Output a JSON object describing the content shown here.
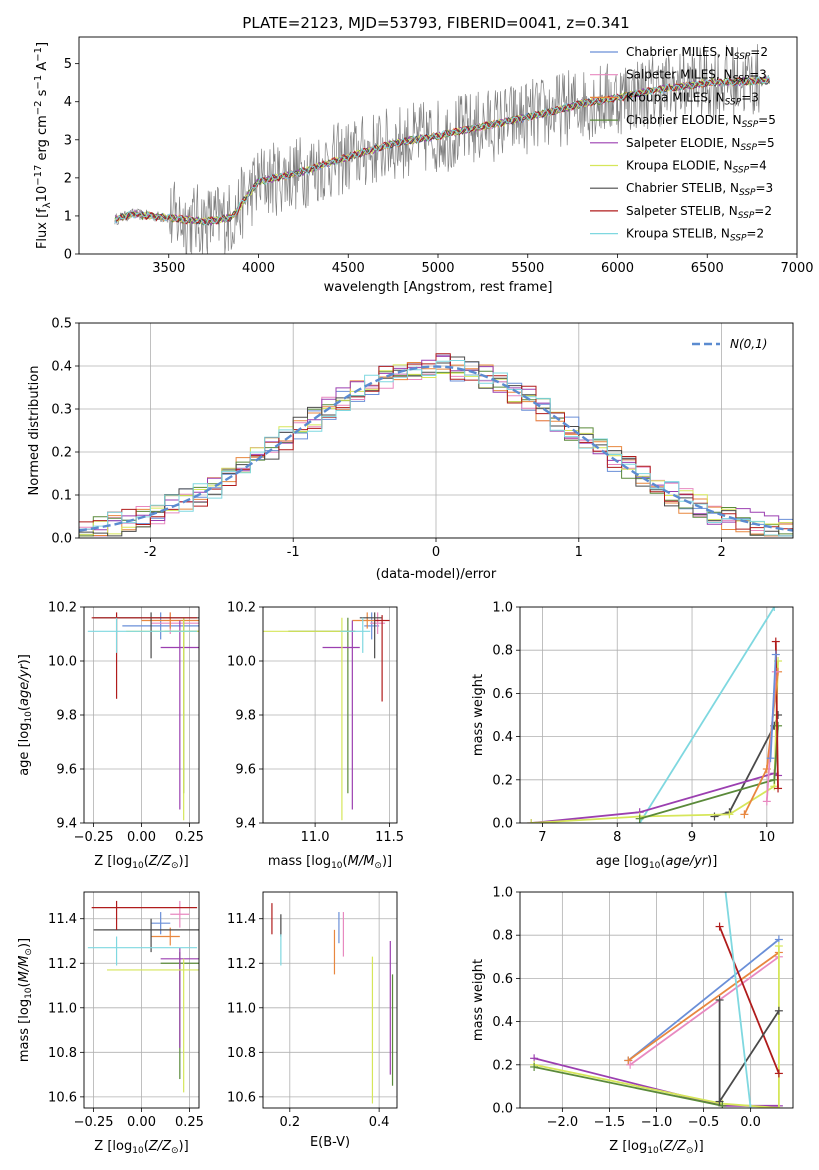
{
  "figure": {
    "title": "PLATE=2123, MJD=53793, FIBERID=0041, z=0.341"
  },
  "colors": {
    "Chabrier MILES": "#6a8fd8",
    "Salpeter MILES": "#e889c0",
    "Kroupa MILES": "#e8873f",
    "Chabrier ELODIE": "#5a8a3a",
    "Salpeter ELODIE": "#9b3fb0",
    "Kroupa ELODIE": "#d6e65a",
    "Chabrier STELIB": "#4a4a4a",
    "Salpeter STELIB": "#b01c1c",
    "Kroupa STELIB": "#7fd8e0",
    "data": "#808080",
    "normal": "#5b8bd0"
  },
  "chart_data": [
    {
      "id": "spectrum",
      "type": "line",
      "xlabel": "wavelength [Angstrom, rest frame]",
      "ylabel": "Flux [f_λ 10^-17 erg cm^-2 s^-1 A^-1]",
      "xlim": [
        3000,
        7000
      ],
      "ylim": [
        0,
        5.7
      ],
      "xticks": [
        3500,
        4000,
        4500,
        5000,
        5500,
        6000,
        6500,
        7000
      ],
      "yticks": [
        0,
        1,
        2,
        3,
        4,
        5
      ],
      "grid": false,
      "legend_position": "top-right",
      "data_range": [
        3200,
        6850
      ],
      "data_noise_start": 3500,
      "data_noise_end": 6800,
      "model_anchors": [
        [
          3200,
          0.9
        ],
        [
          3300,
          1.05
        ],
        [
          3500,
          0.95
        ],
        [
          3700,
          0.85
        ],
        [
          3850,
          0.95
        ],
        [
          3950,
          1.6
        ],
        [
          4000,
          1.9
        ],
        [
          4200,
          2.1
        ],
        [
          4400,
          2.4
        ],
        [
          4600,
          2.7
        ],
        [
          4800,
          2.95
        ],
        [
          5000,
          3.1
        ],
        [
          5200,
          3.3
        ],
        [
          5400,
          3.5
        ],
        [
          5600,
          3.7
        ],
        [
          5800,
          3.95
        ],
        [
          6000,
          4.1
        ],
        [
          6200,
          4.3
        ],
        [
          6500,
          4.5
        ],
        [
          6800,
          4.55
        ]
      ],
      "legend": [
        {
          "label": "Chabrier MILES, N",
          "sub": "SSP",
          "value": "=2"
        },
        {
          "label": "Salpeter MILES, N",
          "sub": "SSP",
          "value": "=3"
        },
        {
          "label": "Kroupa MILES, N",
          "sub": "SSP",
          "value": "=3"
        },
        {
          "label": "Chabrier ELODIE, N",
          "sub": "SSP",
          "value": "=5"
        },
        {
          "label": "Salpeter ELODIE, N",
          "sub": "SSP",
          "value": "=5"
        },
        {
          "label": "Kroupa ELODIE, N",
          "sub": "SSP",
          "value": "=4"
        },
        {
          "label": "Chabrier STELIB, N",
          "sub": "SSP",
          "value": "=3"
        },
        {
          "label": "Salpeter STELIB, N",
          "sub": "SSP",
          "value": "=2"
        },
        {
          "label": "Kroupa STELIB, N",
          "sub": "SSP",
          "value": "=2"
        }
      ]
    },
    {
      "id": "residuals",
      "type": "bar",
      "xlabel": "(data-model)/error",
      "ylabel": "Normed distribution",
      "xlim": [
        -2.5,
        2.5
      ],
      "ylim": [
        0,
        0.5
      ],
      "xticks": [
        -2,
        -1,
        0,
        1,
        2
      ],
      "yticks": [
        0.0,
        0.1,
        0.2,
        0.3,
        0.4,
        0.5
      ],
      "grid": true,
      "legend_position": "top-right",
      "legend_label": "N(0,1)",
      "bin_width": 0.1
    },
    {
      "id": "age_vs_Z",
      "type": "scatter",
      "xlabel": "Z [log10(Z/Z⊙)]",
      "ylabel": "age [log10(age/yr)]",
      "xlim": [
        -0.3,
        0.3
      ],
      "ylim": [
        9.4,
        10.2
      ],
      "xticks": [
        -0.25,
        0.0,
        0.25
      ],
      "xticklabels": [
        "−0.25",
        "0.00",
        "0.25"
      ],
      "yticks": [
        9.4,
        9.6,
        9.8,
        10.0,
        10.2
      ],
      "grid": true,
      "errorbars": [
        {
          "series": "Chabrier MILES",
          "x": 0.1,
          "y": 10.13,
          "xerr": [
            0.2,
            0.2
          ],
          "yerr": [
            0.05,
            0.05
          ]
        },
        {
          "series": "Salpeter MILES",
          "x": 0.15,
          "y": 10.14,
          "xerr": [
            0.1,
            0.15
          ],
          "yerr": [
            0.04,
            0.04
          ]
        },
        {
          "series": "Kroupa MILES",
          "x": 0.15,
          "y": 10.15,
          "xerr": [
            0.15,
            0.15
          ],
          "yerr": [
            0.03,
            0.03
          ]
        },
        {
          "series": "Chabrier ELODIE",
          "x": 0.22,
          "y": 10.11,
          "xerr": [
            0.1,
            0.08
          ],
          "yerr": [
            0.6,
            0.05
          ]
        },
        {
          "series": "Salpeter ELODIE",
          "x": 0.2,
          "y": 10.05,
          "xerr": [
            0.1,
            0.1
          ],
          "yerr": [
            0.6,
            0.1
          ]
        },
        {
          "series": "Kroupa ELODIE",
          "x": 0.22,
          "y": 10.11,
          "xerr": [
            0.3,
            0.08
          ],
          "yerr": [
            0.7,
            0.05
          ]
        },
        {
          "series": "Chabrier STELIB",
          "x": 0.05,
          "y": 10.16,
          "xerr": [
            0.3,
            0.25
          ],
          "yerr": [
            0.15,
            0.02
          ]
        },
        {
          "series": "Salpeter STELIB",
          "x": -0.13,
          "y": 10.16,
          "xerr": [
            0.13,
            0.42
          ],
          "yerr": [
            0.3,
            0.02
          ]
        },
        {
          "series": "Kroupa STELIB",
          "x": -0.13,
          "y": 10.11,
          "xerr": [
            0.15,
            0.42
          ],
          "yerr": [
            0.08,
            0.05
          ]
        }
      ]
    },
    {
      "id": "age_vs_mass",
      "type": "scatter",
      "xlabel": "mass [log10(M/M⊙)]",
      "ylabel": "",
      "xlim": [
        10.65,
        11.55
      ],
      "ylim": [
        9.4,
        10.2
      ],
      "xticks": [
        11.0,
        11.5
      ],
      "xticklabels": [
        "11.0",
        "11.5"
      ],
      "yticks": [
        9.4,
        9.6,
        9.8,
        10.0,
        10.2
      ],
      "grid": true,
      "errorbars": [
        {
          "series": "Chabrier MILES",
          "x": 11.38,
          "y": 10.13,
          "xerr": [
            0.05,
            0.05
          ],
          "yerr": [
            0.05,
            0.05
          ]
        },
        {
          "series": "Salpeter MILES",
          "x": 11.42,
          "y": 10.14,
          "xerr": [
            0.05,
            0.05
          ],
          "yerr": [
            0.04,
            0.04
          ]
        },
        {
          "series": "Kroupa MILES",
          "x": 11.35,
          "y": 10.15,
          "xerr": [
            0.1,
            0.08
          ],
          "yerr": [
            0.03,
            0.03
          ]
        },
        {
          "series": "Chabrier ELODIE",
          "x": 11.22,
          "y": 10.11,
          "xerr": [
            0.4,
            0.05
          ],
          "yerr": [
            0.6,
            0.05
          ]
        },
        {
          "series": "Salpeter ELODIE",
          "x": 11.25,
          "y": 10.05,
          "xerr": [
            0.2,
            0.05
          ],
          "yerr": [
            0.6,
            0.1
          ]
        },
        {
          "series": "Kroupa ELODIE",
          "x": 11.18,
          "y": 10.11,
          "xerr": [
            0.6,
            0.05
          ],
          "yerr": [
            0.7,
            0.05
          ]
        },
        {
          "series": "Chabrier STELIB",
          "x": 11.4,
          "y": 10.16,
          "xerr": [
            0.1,
            0.05
          ],
          "yerr": [
            0.15,
            0.02
          ]
        },
        {
          "series": "Salpeter STELIB",
          "x": 11.45,
          "y": 10.15,
          "xerr": [
            0.05,
            0.05
          ],
          "yerr": [
            0.3,
            0.02
          ]
        },
        {
          "series": "Kroupa STELIB",
          "x": 11.32,
          "y": 10.11,
          "xerr": [
            0.15,
            0.05
          ],
          "yerr": [
            0.08,
            0.05
          ]
        }
      ]
    },
    {
      "id": "weight_vs_age",
      "type": "line",
      "xlabel": "age [log10(age/yr)]",
      "ylabel": "mass weight",
      "xlim": [
        6.7,
        10.35
      ],
      "ylim": [
        0,
        1.0
      ],
      "xticks": [
        7,
        8,
        9,
        10
      ],
      "yticks": [
        0.0,
        0.2,
        0.4,
        0.6,
        0.8,
        1.0
      ],
      "grid": true,
      "series": [
        {
          "name": "Kroupa STELIB",
          "x": [
            8.3,
            10.1
          ],
          "y": [
            0.0,
            1.0
          ]
        },
        {
          "name": "Chabrier STELIB",
          "x": [
            9.3,
            9.5,
            10.1,
            10.15
          ],
          "y": [
            0.03,
            0.05,
            0.45,
            0.5
          ]
        },
        {
          "name": "Salpeter ELODIE",
          "x": [
            6.85,
            8.3,
            10.1,
            10.15
          ],
          "y": [
            0.0,
            0.05,
            0.23,
            0.22
          ]
        },
        {
          "name": "Kroupa ELODIE",
          "x": [
            6.85,
            8.3,
            9.5,
            10.1,
            10.15
          ],
          "y": [
            0.0,
            0.03,
            0.04,
            0.17,
            0.75
          ]
        },
        {
          "name": "Chabrier ELODIE",
          "x": [
            8.3,
            10.1,
            10.15
          ],
          "y": [
            0.02,
            0.2,
            0.45
          ]
        },
        {
          "name": "Salpeter STELIB",
          "x": [
            10.12,
            10.15
          ],
          "y": [
            0.84,
            0.16
          ]
        },
        {
          "name": "Kroupa MILES",
          "x": [
            9.7,
            10.0,
            10.15
          ],
          "y": [
            0.04,
            0.25,
            0.7
          ]
        },
        {
          "name": "Salpeter MILES",
          "x": [
            10.0,
            10.12
          ],
          "y": [
            0.1,
            0.7
          ]
        },
        {
          "name": "Chabrier MILES",
          "x": [
            10.05,
            10.12
          ],
          "y": [
            0.3,
            0.78
          ]
        }
      ]
    },
    {
      "id": "mass_vs_Z",
      "type": "scatter",
      "xlabel": "Z [log10(Z/Z⊙)]",
      "ylabel": "mass [log10(M/M⊙)]",
      "xlim": [
        -0.3,
        0.3
      ],
      "ylim": [
        10.55,
        11.52
      ],
      "xticks": [
        -0.25,
        0.0,
        0.25
      ],
      "xticklabels": [
        "−0.25",
        "0.00",
        "0.25"
      ],
      "yticks": [
        10.6,
        10.8,
        11.0,
        11.2,
        11.4
      ],
      "grid": true,
      "errorbars": [
        {
          "series": "Chabrier MILES",
          "x": 0.1,
          "y": 11.38,
          "xerr": [
            0.05,
            0.05
          ],
          "yerr": [
            0.05,
            0.05
          ]
        },
        {
          "series": "Salpeter MILES",
          "x": 0.2,
          "y": 11.42,
          "xerr": [
            0.05,
            0.05
          ],
          "yerr": [
            0.06,
            0.06
          ]
        },
        {
          "series": "Kroupa MILES",
          "x": 0.15,
          "y": 11.32,
          "xerr": [
            0.1,
            0.05
          ],
          "yerr": [
            0.04,
            0.04
          ]
        },
        {
          "series": "Chabrier ELODIE",
          "x": 0.2,
          "y": 11.2,
          "xerr": [
            0.1,
            0.1
          ],
          "yerr": [
            0.52,
            0.05
          ]
        },
        {
          "series": "Salpeter ELODIE",
          "x": 0.2,
          "y": 11.22,
          "xerr": [
            0.1,
            0.1
          ],
          "yerr": [
            0.4,
            0.05
          ]
        },
        {
          "series": "Kroupa ELODIE",
          "x": 0.22,
          "y": 11.17,
          "xerr": [
            0.4,
            0.08
          ],
          "yerr": [
            0.55,
            0.05
          ]
        },
        {
          "series": "Chabrier STELIB",
          "x": 0.05,
          "y": 11.35,
          "xerr": [
            0.3,
            0.25
          ],
          "yerr": [
            0.1,
            0.05
          ]
        },
        {
          "series": "Salpeter STELIB",
          "x": -0.13,
          "y": 11.45,
          "xerr": [
            0.13,
            0.42
          ],
          "yerr": [
            0.1,
            0.03
          ]
        },
        {
          "series": "Kroupa STELIB",
          "x": -0.13,
          "y": 11.27,
          "xerr": [
            0.15,
            0.42
          ],
          "yerr": [
            0.08,
            0.05
          ]
        }
      ]
    },
    {
      "id": "mass_vs_EBV",
      "type": "scatter",
      "xlabel": "E(B-V)",
      "ylabel": "",
      "xlim": [
        0.14,
        0.44
      ],
      "ylim": [
        10.55,
        11.52
      ],
      "xticks": [
        0.2,
        0.4
      ],
      "xticklabels": [
        "0.2",
        "0.4"
      ],
      "yticks": [
        10.6,
        10.8,
        11.0,
        11.2,
        11.4
      ],
      "grid": true,
      "errorbars": [
        {
          "series": "Salpeter STELIB",
          "x": 0.16,
          "y": 11.4,
          "xerr": [
            0,
            0
          ],
          "yerr": [
            0.07,
            0.07
          ]
        },
        {
          "series": "Chabrier STELIB",
          "x": 0.18,
          "y": 11.37,
          "xerr": [
            0,
            0
          ],
          "yerr": [
            0.05,
            0.05
          ]
        },
        {
          "series": "Kroupa STELIB",
          "x": 0.18,
          "y": 11.26,
          "xerr": [
            0,
            0
          ],
          "yerr": [
            0.07,
            0.07
          ]
        },
        {
          "series": "Chabrier MILES",
          "x": 0.31,
          "y": 11.36,
          "xerr": [
            0,
            0
          ],
          "yerr": [
            0.07,
            0.07
          ]
        },
        {
          "series": "Kroupa MILES",
          "x": 0.3,
          "y": 11.25,
          "xerr": [
            0,
            0
          ],
          "yerr": [
            0.1,
            0.1
          ]
        },
        {
          "series": "Salpeter MILES",
          "x": 0.32,
          "y": 11.33,
          "xerr": [
            0,
            0
          ],
          "yerr": [
            0.1,
            0.1
          ]
        },
        {
          "series": "Kroupa ELODIE",
          "x": 0.385,
          "y": 10.9,
          "xerr": [
            0,
            0
          ],
          "yerr": [
            0.33,
            0.33
          ]
        },
        {
          "series": "Salpeter ELODIE",
          "x": 0.425,
          "y": 11.0,
          "xerr": [
            0,
            0
          ],
          "yerr": [
            0.3,
            0.3
          ]
        },
        {
          "series": "Chabrier ELODIE",
          "x": 0.43,
          "y": 10.9,
          "xerr": [
            0,
            0
          ],
          "yerr": [
            0.25,
            0.25
          ]
        }
      ]
    },
    {
      "id": "weight_vs_Z",
      "type": "line",
      "xlabel": "Z [log10(Z/Z⊙)]",
      "ylabel": "mass weight",
      "xlim": [
        -2.45,
        0.45
      ],
      "ylim": [
        0,
        1.0
      ],
      "xticks": [
        -2.0,
        -1.5,
        -1.0,
        -0.5,
        0.0
      ],
      "xticklabels": [
        "−2.0",
        "−1.5",
        "−1.0",
        "−0.5",
        "0.0"
      ],
      "yticks": [
        0.0,
        0.2,
        0.4,
        0.6,
        0.8,
        1.0
      ],
      "grid": true,
      "series": [
        {
          "name": "Chabrier MILES",
          "x": [
            -1.3,
            0.3
          ],
          "y": [
            0.22,
            0.78
          ]
        },
        {
          "name": "Kroupa MILES",
          "x": [
            -1.3,
            0.3
          ],
          "y": [
            0.22,
            0.72
          ]
        },
        {
          "name": "Salpeter MILES",
          "x": [
            -1.28,
            0.3
          ],
          "y": [
            0.2,
            0.7
          ]
        },
        {
          "name": "Salpeter ELODIE",
          "x": [
            -2.3,
            -0.3,
            0.3
          ],
          "y": [
            0.23,
            0.01,
            0.01
          ]
        },
        {
          "name": "Kroupa ELODIE",
          "x": [
            -2.3,
            -0.3,
            0.3,
            0.3
          ],
          "y": [
            0.2,
            0.02,
            0.0,
            0.75
          ]
        },
        {
          "name": "Chabrier ELODIE",
          "x": [
            -2.3,
            -0.3
          ],
          "y": [
            0.19,
            0.01
          ]
        },
        {
          "name": "Salpeter STELIB",
          "x": [
            -0.33,
            0.3
          ],
          "y": [
            0.84,
            0.16
          ]
        },
        {
          "name": "Chabrier STELIB",
          "x": [
            -0.33,
            -0.33,
            0.3
          ],
          "y": [
            0.5,
            0.03,
            0.45
          ]
        },
        {
          "name": "Kroupa STELIB",
          "x": [
            -0.28,
            0.0
          ],
          "y": [
            1.05,
            0.0
          ]
        }
      ]
    }
  ]
}
